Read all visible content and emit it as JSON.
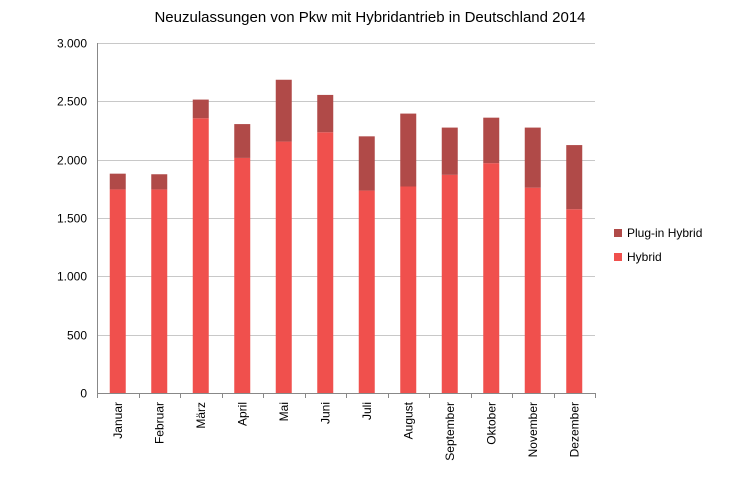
{
  "chart_data": {
    "type": "bar",
    "stacked": true,
    "title": "Neuzulassungen von Pkw mit Hybridantrieb in Deutschland 2014",
    "xlabel": "",
    "ylabel": "",
    "ylim": [
      0,
      3000
    ],
    "yticks": [
      0,
      500,
      1000,
      1500,
      2000,
      2500,
      3000
    ],
    "ytick_labels": [
      "0",
      "500",
      "1.000",
      "1.500",
      "2.000",
      "2.500",
      "3.000"
    ],
    "grid": true,
    "legend_position": "right",
    "categories": [
      "Januar",
      "Februar",
      "März",
      "April",
      "Mai",
      "Juni",
      "Juli",
      "August",
      "September",
      "Oktober",
      "November",
      "Dezember"
    ],
    "series": [
      {
        "name": "Hybrid",
        "color": "#f0504d",
        "values": [
          1745,
          1745,
          2355,
          2015,
          2155,
          2235,
          1735,
          1770,
          1870,
          1970,
          1760,
          1575
        ]
      },
      {
        "name": "Plug-in Hybrid",
        "color": "#b04a48",
        "values": [
          135,
          130,
          160,
          290,
          530,
          320,
          465,
          625,
          405,
          390,
          515,
          550
        ]
      }
    ]
  }
}
